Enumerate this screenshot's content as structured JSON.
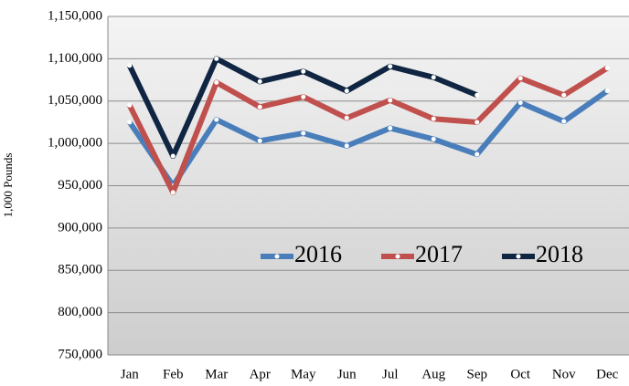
{
  "chart_data": {
    "type": "line",
    "y_label": "1,000 Pounds",
    "categories": [
      "Jan",
      "Feb",
      "Mar",
      "Apr",
      "May",
      "Jun",
      "Jul",
      "Aug",
      "Sep",
      "Oct",
      "Nov",
      "Dec"
    ],
    "series": [
      {
        "name": "2016",
        "color": "#4a7ebb",
        "values": [
          1025000,
          950000,
          1028000,
          1003000,
          1012000,
          997000,
          1018000,
          1005000,
          987000,
          1048000,
          1026000,
          1062000
        ]
      },
      {
        "name": "2017",
        "color": "#c0504d",
        "values": [
          1045000,
          942000,
          1072000,
          1043000,
          1055000,
          1030000,
          1051000,
          1029000,
          1025000,
          1077000,
          1057000,
          1089000
        ]
      },
      {
        "name": "2018",
        "color": "#0f2542",
        "values": [
          1092000,
          985000,
          1100000,
          1073000,
          1085000,
          1062000,
          1091000,
          1078000,
          1057000,
          null,
          null,
          null
        ]
      }
    ],
    "ylim": [
      750000,
      1150000
    ],
    "yticks": [
      {
        "value": 750000,
        "label": "750,000"
      },
      {
        "value": 800000,
        "label": "800,000"
      },
      {
        "value": 850000,
        "label": "850,000"
      },
      {
        "value": 900000,
        "label": "900,000"
      },
      {
        "value": 950000,
        "label": "950,000"
      },
      {
        "value": 1000000,
        "label": "1,000,000"
      },
      {
        "value": 1050000,
        "label": "1,050,000"
      },
      {
        "value": 1100000,
        "label": "1,100,000"
      },
      {
        "value": 1150000,
        "label": "1,150,000"
      }
    ],
    "grid": true,
    "legend": "center"
  }
}
